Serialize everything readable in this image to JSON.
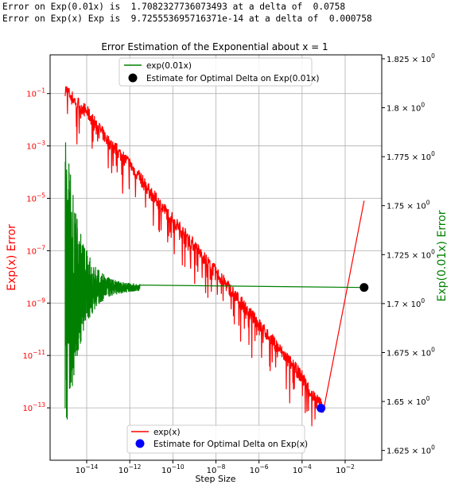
{
  "console": {
    "line1": "Error on Exp(0.01x) is  1.7082327736073493 at a delta of  0.0758",
    "line2": "Error on Exp(x) Exp is  9.725553695716371e-14 at a delta of  0.000758"
  },
  "chart_data": {
    "type": "line",
    "title": "Error Estimation of the Exponential about x = 1",
    "xlabel": "Step Size",
    "ylabel_left": "Exp(x) Error",
    "ylabel_right": "Exp(0.01x) Error",
    "x_scale": "log",
    "y_left_scale": "log",
    "xlim": [
      2e-16,
      0.5
    ],
    "ylim_left": [
      1e-15,
      3
    ],
    "ylim_right": [
      1.62,
      1.827
    ],
    "x_ticks": [
      "10^-14",
      "10^-12",
      "10^-10",
      "10^-8",
      "10^-6",
      "10^-4",
      "10^-2"
    ],
    "y_left_ticks": [
      "10^-1",
      "10^-3",
      "10^-5",
      "10^-7",
      "10^-9",
      "10^-11",
      "10^-13"
    ],
    "y_right_ticks": [
      "1.625 × 10^0",
      "1.65 × 10^0",
      "1.675 × 10^0",
      "1.7 × 10^0",
      "1.725 × 10^0",
      "1.75 × 10^0",
      "1.775 × 10^0",
      "1.8 × 10^0",
      "1.825 × 10^0"
    ],
    "grid": true,
    "series": [
      {
        "name": "exp(x)",
        "axis": "left",
        "color": "#ff0000",
        "noisy": true,
        "x": [
          1e-15,
          3e-15,
          1e-14,
          1e-13,
          1e-12,
          1e-11,
          1e-10,
          1e-09,
          1e-08,
          1e-07,
          1e-06,
          1e-05,
          0.0001,
          0.0003,
          0.001,
          0.0758
        ],
        "y": [
          0.15,
          0.05,
          0.02,
          0.0015,
          0.0002,
          1.5e-05,
          1.5e-06,
          1.5e-07,
          1.5e-08,
          1.5e-09,
          1.5e-10,
          1.5e-11,
          1.5e-12,
          3e-13,
          1e-13,
          8e-06
        ]
      },
      {
        "name": "exp(0.01x)",
        "axis": "right",
        "color": "#008000",
        "noisy": true,
        "x": [
          1e-15,
          1e-14,
          1e-13,
          1e-12,
          0.0758
        ],
        "y": [
          1.7082,
          1.7082,
          1.7082,
          1.7082,
          1.7082
        ]
      }
    ],
    "markers": [
      {
        "name": "Estimate for Optimal Delta on Exp(x)",
        "axis": "left",
        "x": 0.000758,
        "y": 9.725553695716371e-14,
        "color": "#0000ff"
      },
      {
        "name": "Estimate for Optimal Delta on Exp(0.01x)",
        "axis": "right",
        "x": 0.0758,
        "y": 1.7082327736073493,
        "color": "#000000"
      }
    ],
    "legend_top": {
      "placement": "upper center",
      "entries": [
        "exp(0.01x)",
        "Estimate for Optimal Delta on Exp(0.01x)"
      ]
    },
    "legend_bottom": {
      "placement": "lower center",
      "entries": [
        "exp(x)",
        "Estimate for Optimal Delta on Exp(x)"
      ]
    },
    "colors": {
      "left_axis": "#ff0000",
      "right_axis": "#008000",
      "grid": "#b0b0b0"
    }
  }
}
